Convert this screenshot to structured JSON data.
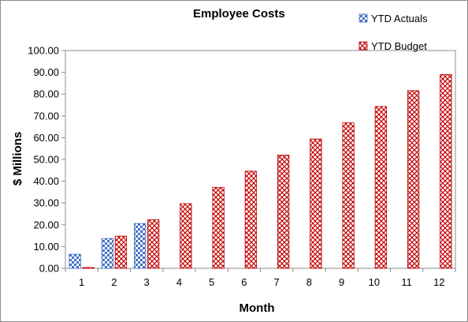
{
  "chart_data": {
    "type": "bar",
    "title": "Employee Costs",
    "xlabel": "Month",
    "ylabel": "$ Millions",
    "categories": [
      "1",
      "2",
      "3",
      "4",
      "5",
      "6",
      "7",
      "8",
      "9",
      "10",
      "11",
      "12"
    ],
    "ylim": [
      0,
      100
    ],
    "ytick_step": 10,
    "ytick_labels": [
      "0.00",
      "10.00",
      "20.00",
      "30.00",
      "40.00",
      "50.00",
      "60.00",
      "70.00",
      "80.00",
      "90.00",
      "100.00"
    ],
    "grid": false,
    "legend_position": "top-right",
    "series": [
      {
        "name": "YTD Actuals",
        "color": "#4472c4",
        "pattern": "checker",
        "values": [
          6.5,
          13.7,
          20.6,
          null,
          null,
          null,
          null,
          null,
          null,
          null,
          null,
          null
        ]
      },
      {
        "name": "YTD Budget",
        "color": "#c00000",
        "pattern": "weave",
        "values": [
          0.4,
          14.8,
          22.3,
          29.7,
          37.2,
          44.6,
          52.0,
          59.4,
          66.8,
          74.3,
          81.6,
          89.0
        ]
      }
    ]
  }
}
